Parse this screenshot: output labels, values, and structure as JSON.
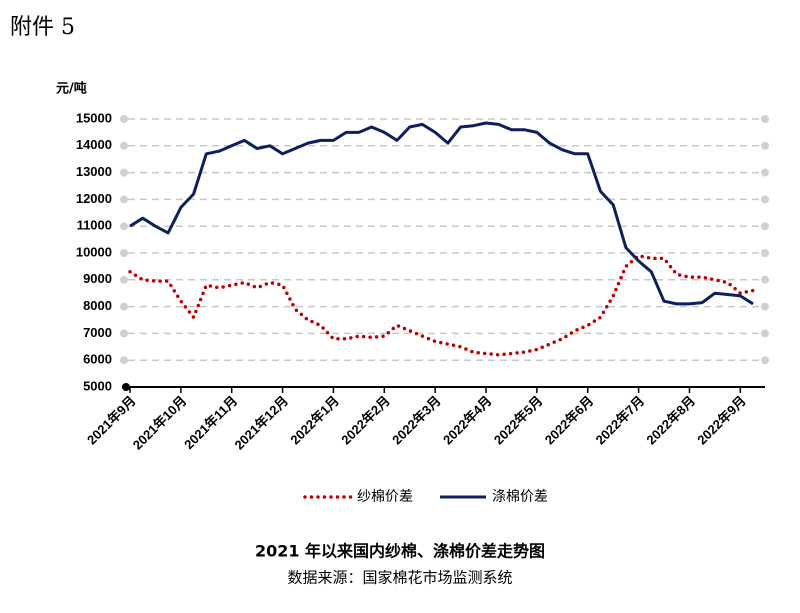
{
  "header": "附件 5",
  "chart_data": {
    "type": "line",
    "title": "2021 年以来国内纱棉、涤棉价差走势图",
    "source": "数据来源：国家棉花市场监测系统",
    "y_label": "元/吨",
    "categories": [
      "2021年9月",
      null,
      null,
      null,
      "2021年10月",
      null,
      null,
      null,
      "2021年11月",
      null,
      null,
      null,
      "2021年12月",
      null,
      null,
      null,
      "2022年1月",
      null,
      null,
      null,
      "2022年2月",
      null,
      null,
      null,
      "2022年3月",
      null,
      null,
      null,
      "2022年4月",
      null,
      null,
      null,
      "2022年5月",
      null,
      null,
      null,
      "2022年6月",
      null,
      null,
      null,
      "2022年7月",
      null,
      null,
      null,
      "2022年8月",
      null,
      null,
      null,
      "2022年9月",
      null
    ],
    "series": [
      {
        "name": "纱棉价差",
        "color": "#c00000",
        "style": "dotted",
        "values": [
          9300,
          9000,
          8950,
          8950,
          8200,
          7600,
          8800,
          8700,
          8800,
          8900,
          8700,
          8900,
          8800,
          7900,
          7500,
          7300,
          6800,
          6800,
          6900,
          6850,
          6900,
          7300,
          7100,
          6900,
          6700,
          6600,
          6500,
          6300,
          6250,
          6200,
          6250,
          6300,
          6400,
          6600,
          6800,
          7100,
          7300,
          7600,
          8400,
          9500,
          9900,
          9800,
          9800,
          9200,
          9100,
          9100,
          9000,
          8900,
          8500,
          8600
        ]
      },
      {
        "name": "涤棉价差",
        "color": "#0d1f5c",
        "style": "solid",
        "values": [
          11000,
          11300,
          11000,
          10750,
          11700,
          12200,
          13700,
          13800,
          14000,
          14200,
          13900,
          14000,
          13700,
          13900,
          14100,
          14200,
          14200,
          14500,
          14500,
          14700,
          14500,
          14200,
          14700,
          14800,
          14500,
          14100,
          14700,
          14750,
          14850,
          14800,
          14600,
          14600,
          14500,
          14100,
          13850,
          13700,
          13700,
          12300,
          11800,
          10200,
          9700,
          9300,
          8200,
          8100,
          8100,
          8150,
          8500,
          8450,
          8400,
          8100
        ]
      }
    ],
    "ylim": [
      5000,
      15000
    ],
    "yticks": [
      5000,
      6000,
      7000,
      8000,
      9000,
      10000,
      11000,
      12000,
      13000,
      14000,
      15000
    ],
    "grid": true
  }
}
